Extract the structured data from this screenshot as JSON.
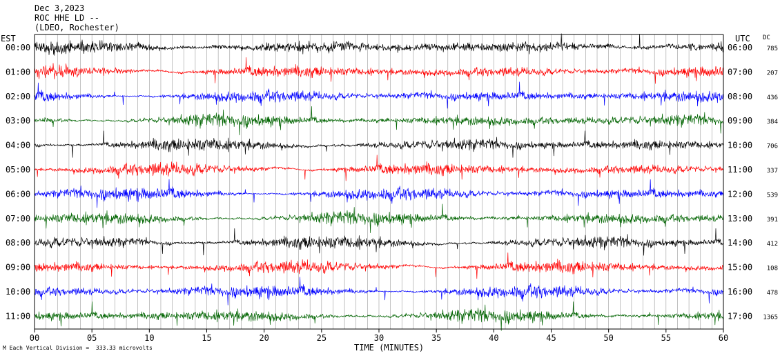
{
  "header": {
    "date": "Dec 3,2023",
    "station": "ROC HHE LD --",
    "institution": "(LDEO, Rochester)",
    "left_zone": "EST",
    "right_zone": "UTC",
    "dc_label": "DC"
  },
  "footer": {
    "scale_note": "Each Vertical Division =  333.33 microvolts",
    "mark": "M"
  },
  "chart_data": {
    "type": "line",
    "title": "Dec 3,2023",
    "xlabel": "TIME (MINUTES)",
    "ylabel": "",
    "xlim": [
      0,
      60
    ],
    "x_ticks": [
      "00",
      "05",
      "10",
      "15",
      "20",
      "25",
      "30",
      "35",
      "40",
      "45",
      "50",
      "55",
      "60"
    ],
    "grid": "vertical lines every minute",
    "series_colors": [
      "#000000",
      "#ff0000",
      "#0000ff",
      "#006400"
    ],
    "rows": [
      {
        "est": "00:00",
        "utc": "06:00",
        "dc": "785",
        "color": "#000000"
      },
      {
        "est": "01:00",
        "utc": "07:00",
        "dc": "207",
        "color": "#ff0000"
      },
      {
        "est": "02:00",
        "utc": "08:00",
        "dc": "436",
        "color": "#0000ff"
      },
      {
        "est": "03:00",
        "utc": "09:00",
        "dc": "384",
        "color": "#006400"
      },
      {
        "est": "04:00",
        "utc": "10:00",
        "dc": "706",
        "color": "#000000"
      },
      {
        "est": "05:00",
        "utc": "11:00",
        "dc": "337",
        "color": "#ff0000"
      },
      {
        "est": "06:00",
        "utc": "12:00",
        "dc": "539",
        "color": "#0000ff"
      },
      {
        "est": "07:00",
        "utc": "13:00",
        "dc": "391",
        "color": "#006400"
      },
      {
        "est": "08:00",
        "utc": "14:00",
        "dc": "412",
        "color": "#000000"
      },
      {
        "est": "09:00",
        "utc": "15:00",
        "dc": "108",
        "color": "#ff0000"
      },
      {
        "est": "10:00",
        "utc": "16:00",
        "dc": "478",
        "color": "#0000ff"
      },
      {
        "est": "11:00",
        "utc": "17:00",
        "dc": "1365",
        "color": "#006400"
      }
    ]
  }
}
